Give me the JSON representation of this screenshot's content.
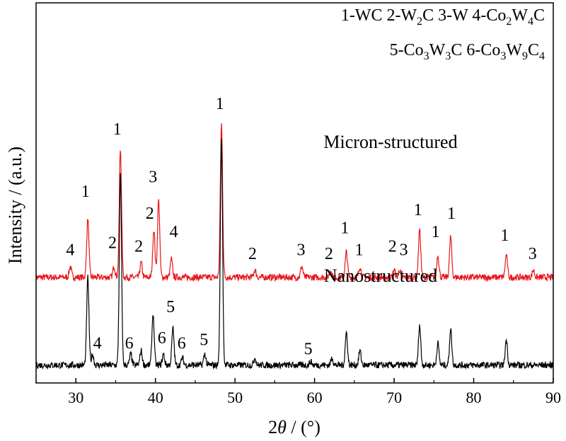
{
  "chart_data": {
    "type": "line",
    "xlabel": "2θ / (°)",
    "ylabel": "Intensity / (a.u.)",
    "xlim": [
      25,
      90
    ],
    "x_ticks": [
      30,
      40,
      50,
      60,
      70,
      80,
      90
    ],
    "y_ticks_shown": false,
    "grid": false,
    "legend_lines": [
      "1-WC   2-W₂C   3-W   4-Co₂W₄C",
      "5-Co₃W₃C   6-Co₃W₉C₄"
    ],
    "series": [
      {
        "label": "Micron-structured",
        "color": "#e8161b",
        "baseline": 0.24,
        "peaks": [
          {
            "x": 29.3,
            "h": 0.03
          },
          {
            "x": 31.5,
            "h": 0.16
          },
          {
            "x": 34.8,
            "h": 0.03
          },
          {
            "x": 35.6,
            "h": 0.35
          },
          {
            "x": 38.2,
            "h": 0.04
          },
          {
            "x": 39.8,
            "h": 0.13
          },
          {
            "x": 40.4,
            "h": 0.21
          },
          {
            "x": 42.0,
            "h": 0.05
          },
          {
            "x": 48.3,
            "h": 0.42
          },
          {
            "x": 52.5,
            "h": 0.02
          },
          {
            "x": 58.4,
            "h": 0.03
          },
          {
            "x": 62.0,
            "h": 0.02
          },
          {
            "x": 64.0,
            "h": 0.07
          },
          {
            "x": 65.7,
            "h": 0.03
          },
          {
            "x": 70.0,
            "h": 0.02
          },
          {
            "x": 70.7,
            "h": 0.02
          },
          {
            "x": 73.2,
            "h": 0.13
          },
          {
            "x": 75.5,
            "h": 0.06
          },
          {
            "x": 77.1,
            "h": 0.11
          },
          {
            "x": 84.1,
            "h": 0.06
          },
          {
            "x": 87.5,
            "h": 0.02
          }
        ]
      },
      {
        "label": "Nanostructured",
        "color": "#000000",
        "baseline": 0.0,
        "peaks": [
          {
            "x": 31.5,
            "h": 0.24
          },
          {
            "x": 32.1,
            "h": 0.03
          },
          {
            "x": 35.6,
            "h": 0.52
          },
          {
            "x": 36.9,
            "h": 0.03
          },
          {
            "x": 38.2,
            "h": 0.04
          },
          {
            "x": 39.7,
            "h": 0.14
          },
          {
            "x": 41.0,
            "h": 0.03
          },
          {
            "x": 42.2,
            "h": 0.1
          },
          {
            "x": 43.4,
            "h": 0.02
          },
          {
            "x": 46.2,
            "h": 0.03
          },
          {
            "x": 48.3,
            "h": 0.62
          },
          {
            "x": 52.5,
            "h": 0.02
          },
          {
            "x": 59.5,
            "h": 0.01
          },
          {
            "x": 62.2,
            "h": 0.02
          },
          {
            "x": 64.0,
            "h": 0.09
          },
          {
            "x": 65.7,
            "h": 0.04
          },
          {
            "x": 73.2,
            "h": 0.11
          },
          {
            "x": 75.5,
            "h": 0.06
          },
          {
            "x": 77.1,
            "h": 0.1
          },
          {
            "x": 84.1,
            "h": 0.07
          }
        ]
      }
    ],
    "annotations": [
      {
        "text": "4",
        "x": 29.3,
        "y": 0.31
      },
      {
        "text": "1",
        "x": 31.2,
        "y": 0.47
      },
      {
        "text": "2",
        "x": 34.6,
        "y": 0.33
      },
      {
        "text": "1",
        "x": 35.2,
        "y": 0.64
      },
      {
        "text": "2",
        "x": 37.9,
        "y": 0.32
      },
      {
        "text": "2",
        "x": 39.3,
        "y": 0.41
      },
      {
        "text": "3",
        "x": 39.7,
        "y": 0.51
      },
      {
        "text": "4",
        "x": 42.3,
        "y": 0.36
      },
      {
        "text": "1",
        "x": 48.1,
        "y": 0.71
      },
      {
        "text": "2",
        "x": 52.2,
        "y": 0.3
      },
      {
        "text": "3",
        "x": 58.3,
        "y": 0.31
      },
      {
        "text": "2",
        "x": 61.8,
        "y": 0.3
      },
      {
        "text": "1",
        "x": 63.8,
        "y": 0.37
      },
      {
        "text": "1",
        "x": 65.6,
        "y": 0.31
      },
      {
        "text": "2",
        "x": 69.8,
        "y": 0.32
      },
      {
        "text": "3",
        "x": 71.2,
        "y": 0.31
      },
      {
        "text": "1",
        "x": 73.0,
        "y": 0.42
      },
      {
        "text": "1",
        "x": 75.2,
        "y": 0.36
      },
      {
        "text": "1",
        "x": 77.2,
        "y": 0.41
      },
      {
        "text": "1",
        "x": 83.9,
        "y": 0.35
      },
      {
        "text": "3",
        "x": 87.4,
        "y": 0.3
      },
      {
        "text": "4",
        "x": 32.7,
        "y": 0.055
      },
      {
        "text": "6",
        "x": 36.7,
        "y": 0.055
      },
      {
        "text": "6",
        "x": 40.8,
        "y": 0.07
      },
      {
        "text": "5",
        "x": 41.9,
        "y": 0.155
      },
      {
        "text": "6",
        "x": 43.3,
        "y": 0.055
      },
      {
        "text": "5",
        "x": 46.1,
        "y": 0.065
      },
      {
        "text": "5",
        "x": 59.2,
        "y": 0.04
      }
    ]
  }
}
